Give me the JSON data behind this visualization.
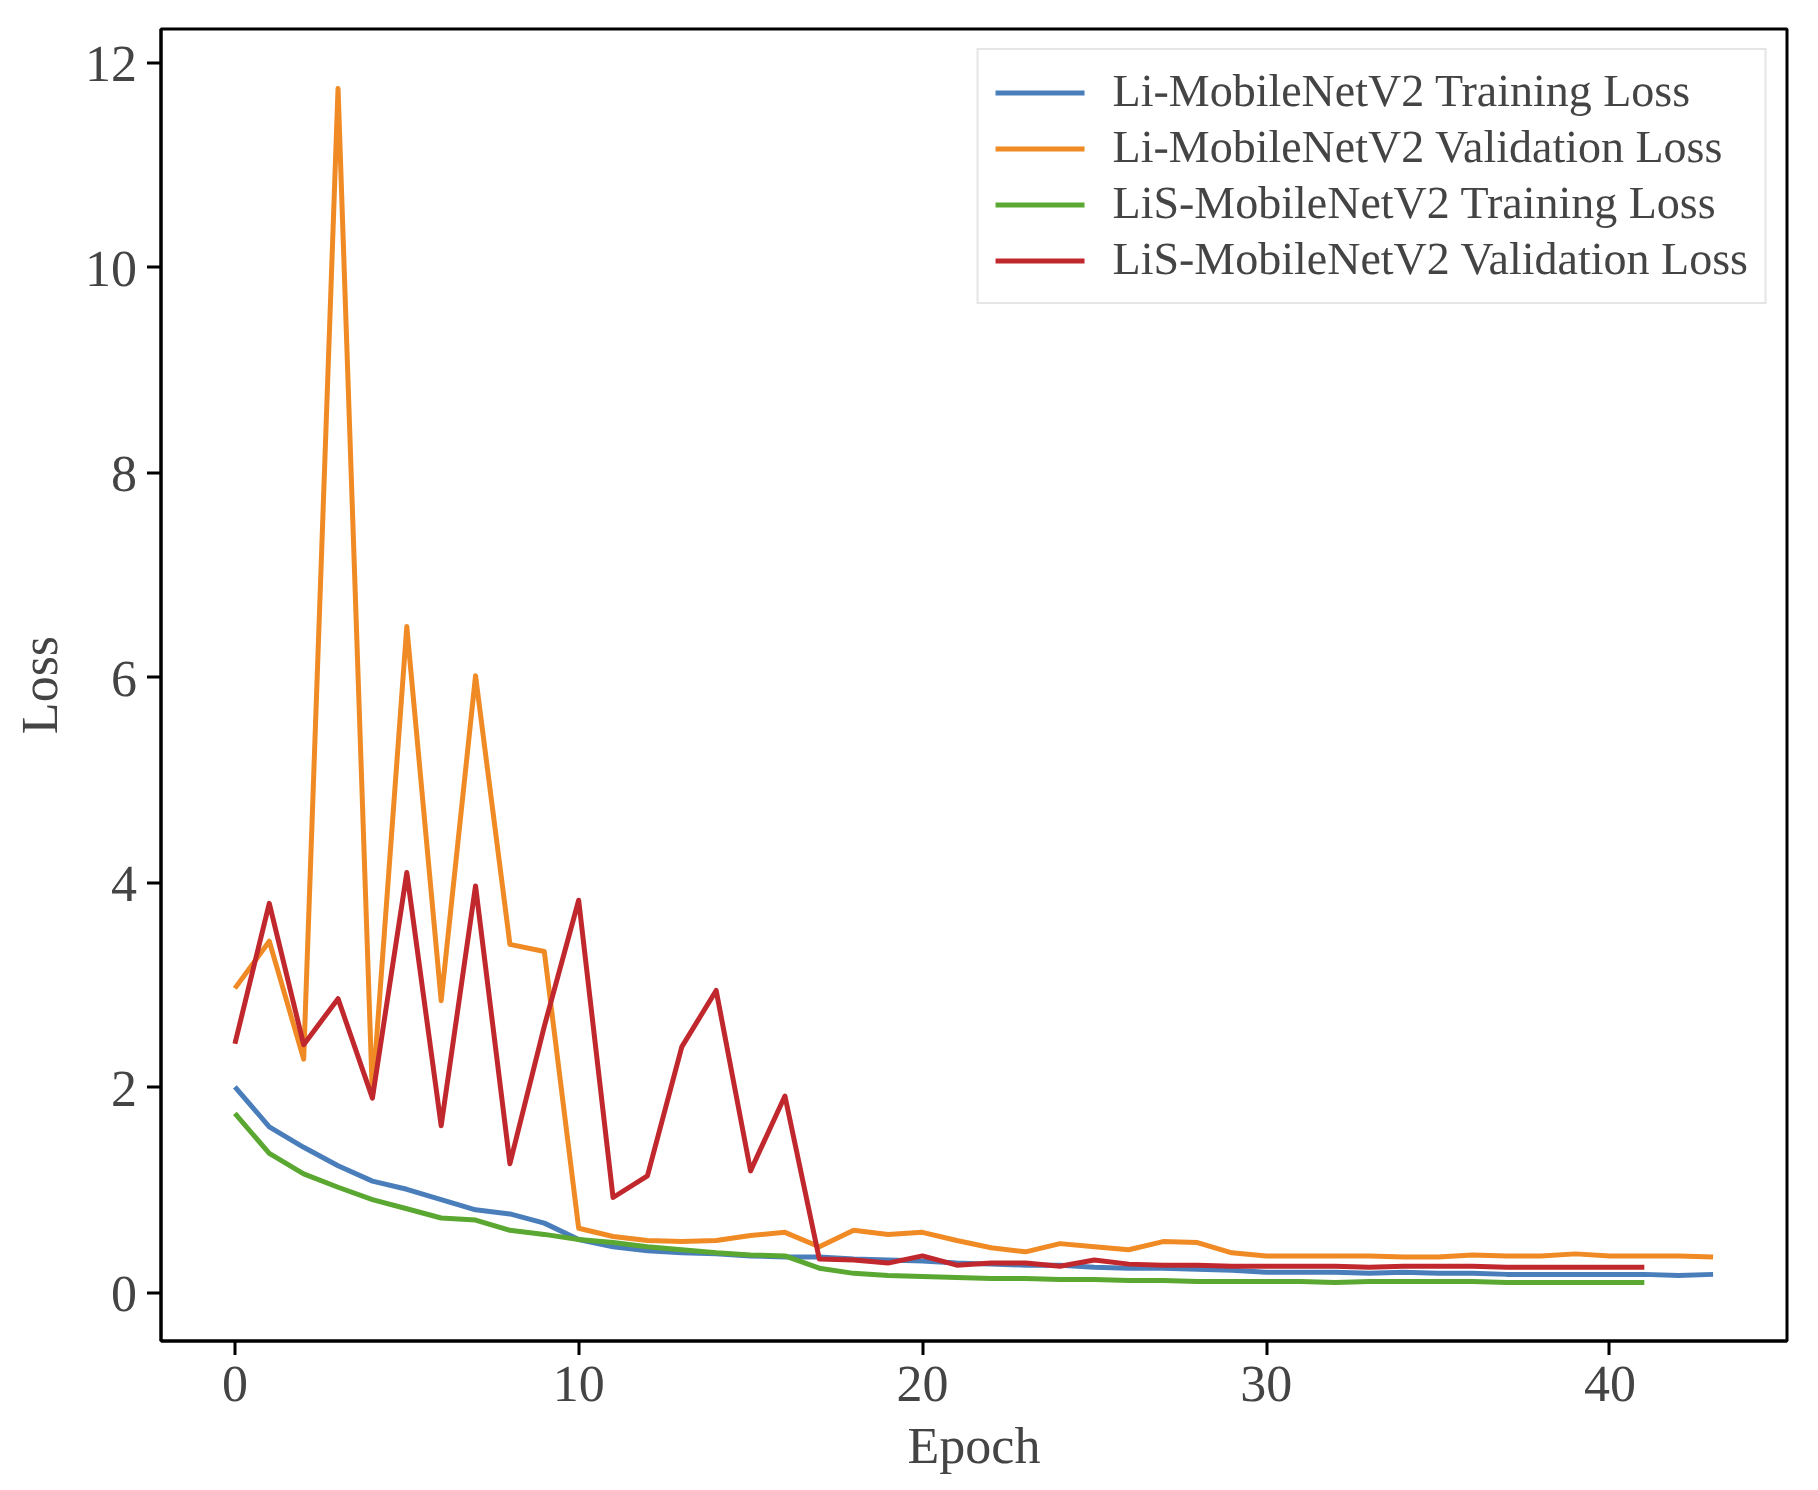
{
  "chart_data": {
    "type": "line",
    "xlabel": "Epoch",
    "ylabel": "Loss",
    "xlim": [
      -2.15,
      45.15
    ],
    "ylim": [
      -0.47,
      12.33
    ],
    "xticks": [
      0,
      10,
      20,
      30,
      40
    ],
    "yticks": [
      0,
      2,
      4,
      6,
      8,
      10,
      12
    ],
    "grid": false,
    "legend": "top right",
    "line_style": "solid",
    "series": [
      {
        "name": "Li-MobileNetV2 Training Loss",
        "color": "#4a7ebb",
        "x": [
          0,
          1,
          2,
          3,
          4,
          5,
          6,
          7,
          8,
          9,
          10,
          11,
          12,
          13,
          14,
          15,
          16,
          17,
          18,
          19,
          20,
          21,
          22,
          23,
          24,
          25,
          26,
          27,
          28,
          29,
          30,
          31,
          32,
          33,
          34,
          35,
          36,
          37,
          38,
          39,
          40,
          41,
          42,
          43
        ],
        "values": [
          2.01,
          1.62,
          1.42,
          1.24,
          1.09,
          1.01,
          0.91,
          0.81,
          0.77,
          0.68,
          0.52,
          0.45,
          0.41,
          0.39,
          0.38,
          0.36,
          0.35,
          0.35,
          0.33,
          0.32,
          0.31,
          0.29,
          0.28,
          0.27,
          0.27,
          0.25,
          0.24,
          0.24,
          0.23,
          0.22,
          0.2,
          0.2,
          0.2,
          0.19,
          0.2,
          0.19,
          0.19,
          0.18,
          0.18,
          0.18,
          0.18,
          0.18,
          0.17,
          0.18
        ]
      },
      {
        "name": "Li-MobileNetV2 Validation Loss",
        "color": "#f08a24",
        "x": [
          0,
          1,
          2,
          3,
          4,
          5,
          6,
          7,
          8,
          9,
          10,
          11,
          12,
          13,
          14,
          15,
          16,
          17,
          18,
          19,
          20,
          21,
          22,
          23,
          24,
          25,
          26,
          27,
          28,
          29,
          30,
          31,
          32,
          33,
          34,
          35,
          36,
          37,
          38,
          39,
          40,
          41,
          42,
          43
        ],
        "values": [
          2.97,
          3.43,
          2.28,
          11.75,
          1.92,
          6.5,
          2.85,
          6.02,
          3.4,
          3.33,
          0.63,
          0.55,
          0.51,
          0.5,
          0.51,
          0.56,
          0.59,
          0.45,
          0.61,
          0.57,
          0.59,
          0.51,
          0.44,
          0.4,
          0.48,
          0.45,
          0.42,
          0.5,
          0.49,
          0.39,
          0.36,
          0.36,
          0.36,
          0.36,
          0.35,
          0.35,
          0.37,
          0.36,
          0.36,
          0.38,
          0.36,
          0.36,
          0.36,
          0.35
        ]
      },
      {
        "name": "LiS-MobileNetV2 Training Loss",
        "color": "#5aa832",
        "x": [
          0,
          1,
          2,
          3,
          4,
          5,
          6,
          7,
          8,
          9,
          10,
          11,
          12,
          13,
          14,
          15,
          16,
          17,
          18,
          19,
          20,
          21,
          22,
          23,
          24,
          25,
          26,
          27,
          28,
          29,
          30,
          31,
          32,
          33,
          34,
          35,
          36,
          37,
          38,
          39,
          40,
          41
        ],
        "values": [
          1.75,
          1.36,
          1.16,
          1.03,
          0.91,
          0.82,
          0.73,
          0.71,
          0.61,
          0.57,
          0.52,
          0.49,
          0.45,
          0.42,
          0.39,
          0.37,
          0.36,
          0.24,
          0.19,
          0.17,
          0.16,
          0.15,
          0.14,
          0.14,
          0.13,
          0.13,
          0.12,
          0.12,
          0.11,
          0.11,
          0.11,
          0.11,
          0.1,
          0.11,
          0.11,
          0.11,
          0.11,
          0.1,
          0.1,
          0.1,
          0.1,
          0.1
        ]
      },
      {
        "name": "LiS-MobileNetV2 Validation Loss",
        "color": "#c0282d",
        "x": [
          0,
          1,
          2,
          3,
          4,
          5,
          6,
          7,
          8,
          9,
          10,
          11,
          12,
          13,
          14,
          15,
          16,
          17,
          18,
          19,
          20,
          21,
          22,
          23,
          24,
          25,
          26,
          27,
          28,
          29,
          30,
          31,
          32,
          33,
          34,
          35,
          36,
          37,
          38,
          39,
          40,
          41
        ],
        "values": [
          2.43,
          3.8,
          2.42,
          2.87,
          1.9,
          4.1,
          1.63,
          3.97,
          1.26,
          2.6,
          3.83,
          0.93,
          1.14,
          2.4,
          2.95,
          1.19,
          1.92,
          0.33,
          0.32,
          0.29,
          0.36,
          0.27,
          0.29,
          0.29,
          0.26,
          0.32,
          0.28,
          0.27,
          0.27,
          0.26,
          0.26,
          0.26,
          0.26,
          0.25,
          0.26,
          0.26,
          0.26,
          0.25,
          0.25,
          0.25,
          0.25,
          0.25
        ]
      }
    ]
  }
}
